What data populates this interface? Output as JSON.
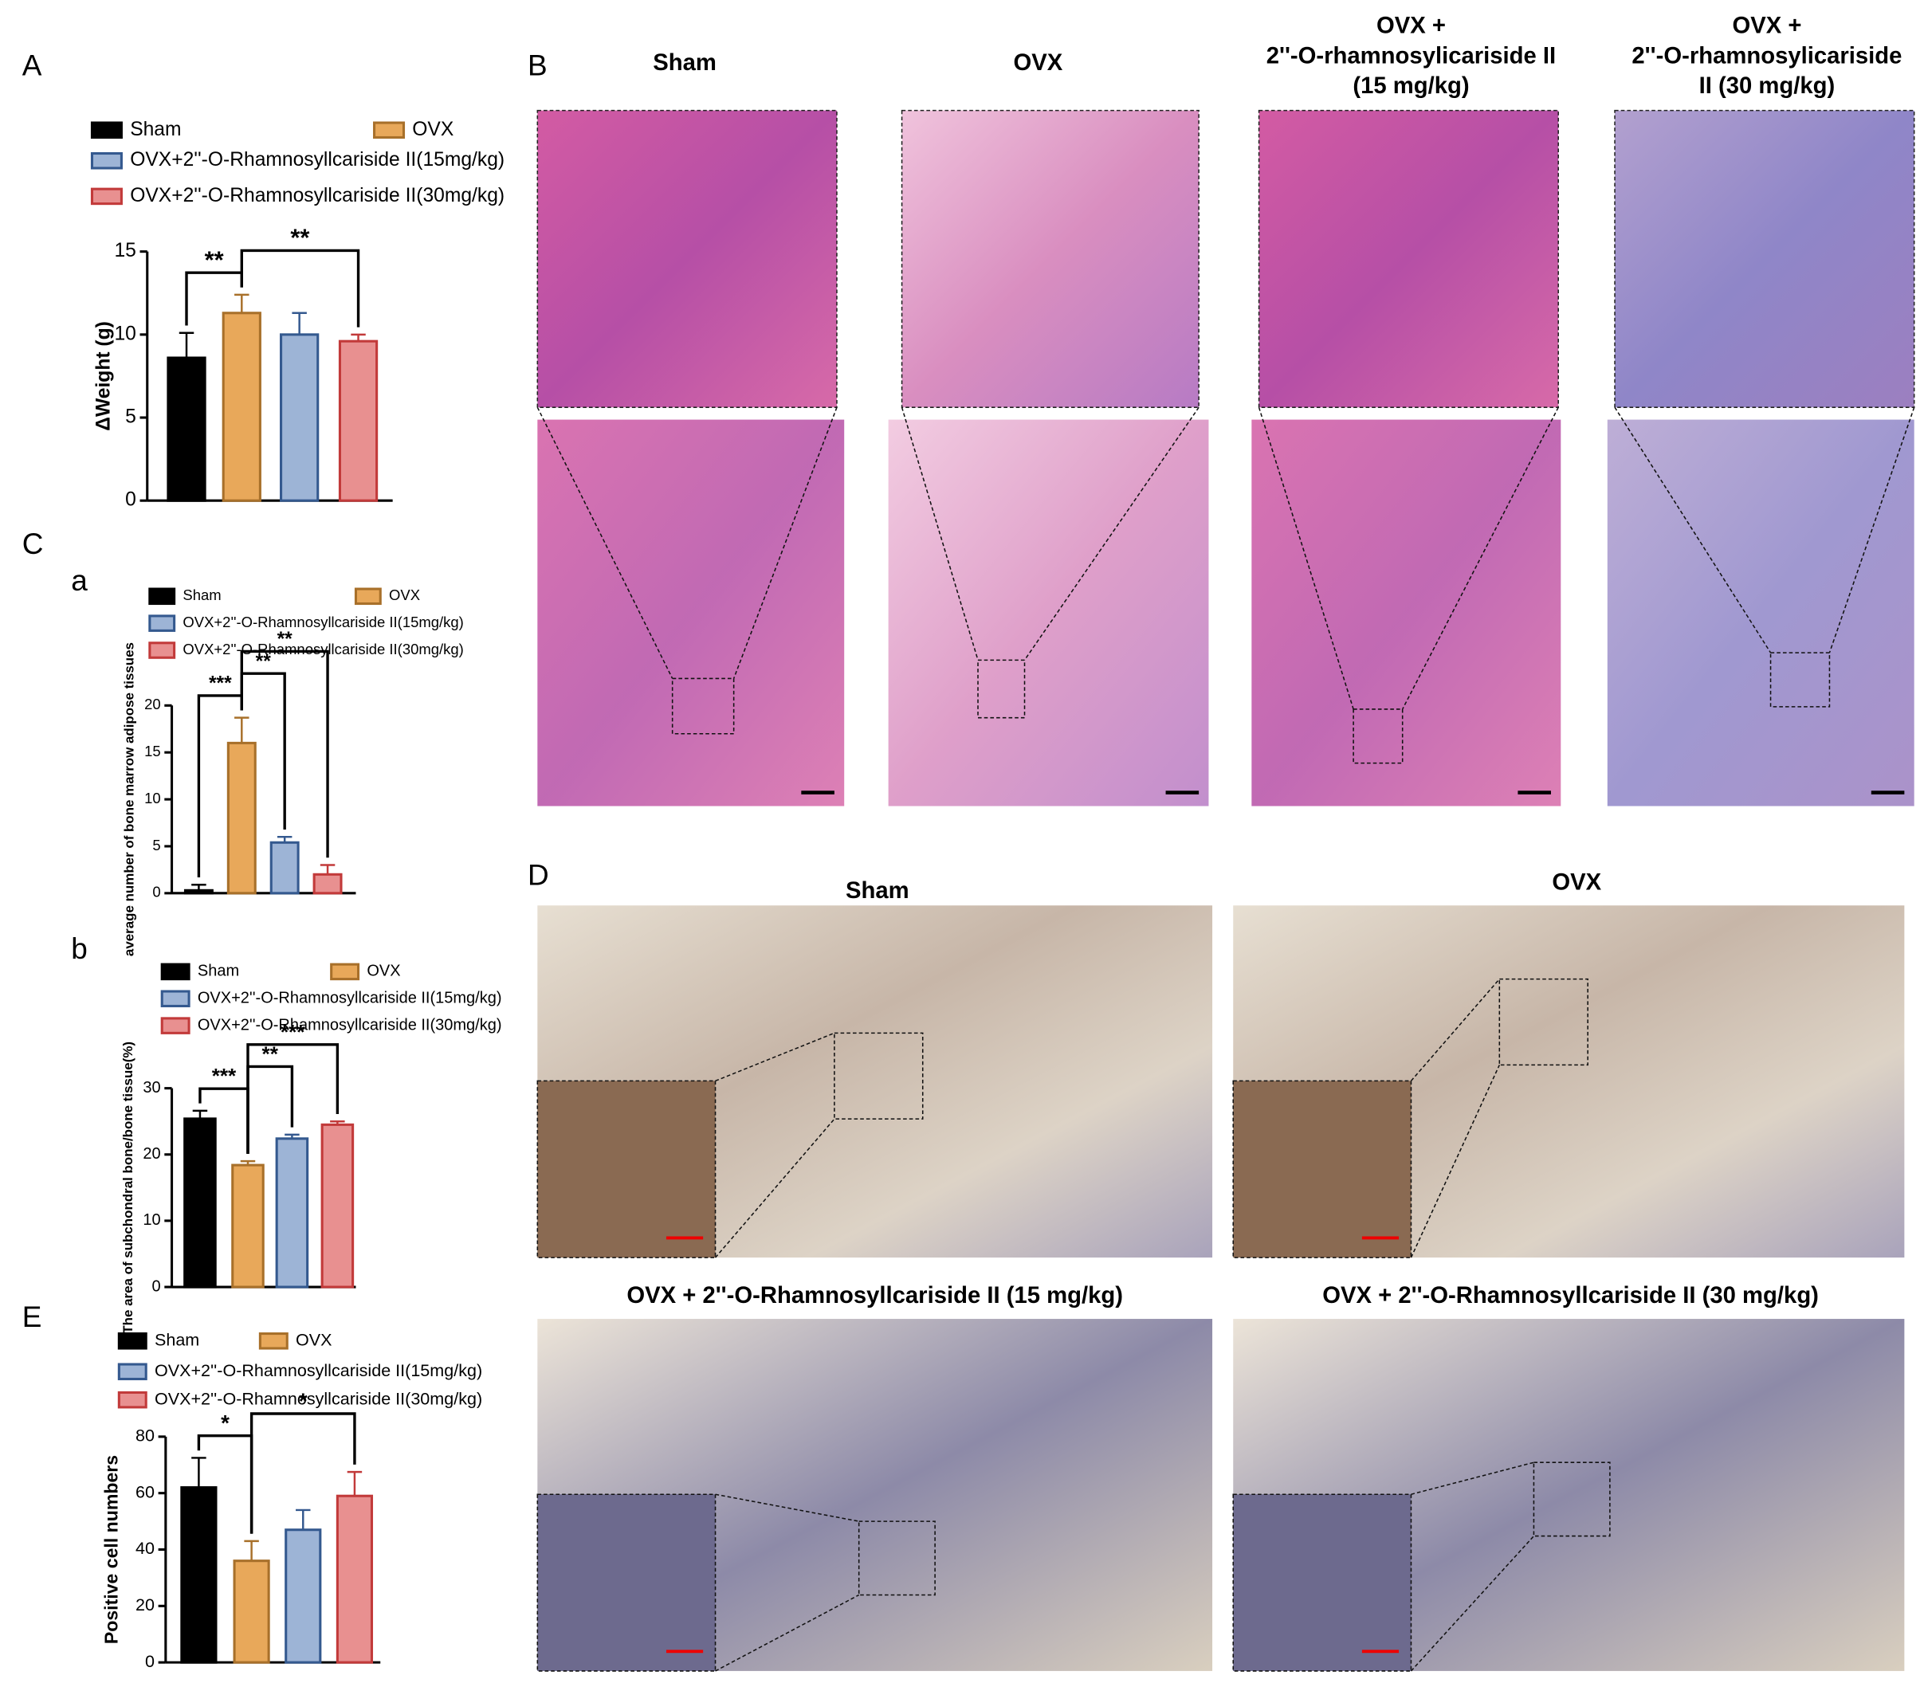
{
  "panel_labels": [
    "A",
    "B",
    "C",
    "a",
    "b",
    "D",
    "E"
  ],
  "chart_data": [
    {
      "type": "bar",
      "ylabel": "ΔWeight (g)",
      "ylim": [
        0,
        15
      ],
      "yticks": [
        0,
        5,
        10,
        15
      ],
      "series": [
        {
          "name": "Sham",
          "color": "#000000",
          "edgecolor": "#000000",
          "values": [
            8.6
          ],
          "errors": [
            1.5
          ]
        },
        {
          "name": "OVX",
          "color": "#e8a85a",
          "edgecolor": "#a8702a",
          "values": [
            11.3
          ],
          "errors": [
            1.1
          ]
        },
        {
          "name": "OVX+2''-O-Rhamnosyllcariside II(15mg/kg)",
          "color": "#9db4d6",
          "edgecolor": "#34598f",
          "values": [
            10.0
          ],
          "errors": [
            1.3
          ]
        },
        {
          "name": "OVX+2''-O-Rhamnosyllcariside II(30mg/kg)",
          "color": "#e89090",
          "edgecolor": "#c23a3a",
          "values": [
            9.6
          ],
          "errors": [
            0.4
          ]
        }
      ],
      "annotations": [
        {
          "label": "**",
          "between": [
            0,
            1
          ]
        },
        {
          "label": "**",
          "between": [
            1,
            3
          ]
        }
      ]
    },
    {
      "type": "bar",
      "ylabel": "average number of bone marrow adipose tissues",
      "ylim": [
        0,
        20
      ],
      "yticks": [
        0,
        5,
        10,
        15,
        20
      ],
      "series": [
        {
          "name": "Sham",
          "color": "#000000",
          "edgecolor": "#000000",
          "values": [
            0.3
          ],
          "errors": [
            0.6
          ]
        },
        {
          "name": "OVX",
          "color": "#e8a85a",
          "edgecolor": "#a8702a",
          "values": [
            16.0
          ],
          "errors": [
            2.7
          ]
        },
        {
          "name": "OVX+2''-O-Rhamnosyllcariside II(15mg/kg)",
          "color": "#9db4d6",
          "edgecolor": "#34598f",
          "values": [
            5.4
          ],
          "errors": [
            0.6
          ]
        },
        {
          "name": "OVX+2''-O-Rhamnosyllcariside II(30mg/kg)",
          "color": "#e89090",
          "edgecolor": "#c23a3a",
          "values": [
            2.0
          ],
          "errors": [
            1.0
          ]
        }
      ],
      "annotations": [
        {
          "label": "***",
          "between": [
            0,
            1
          ]
        },
        {
          "label": "**",
          "between": [
            1,
            2
          ]
        },
        {
          "label": "**",
          "between": [
            1,
            3
          ]
        }
      ]
    },
    {
      "type": "bar",
      "ylabel": "The area of subchondral bone/bone tissue(%)",
      "ylim": [
        0,
        30
      ],
      "yticks": [
        0,
        10,
        20,
        30
      ],
      "series": [
        {
          "name": "Sham",
          "color": "#000000",
          "edgecolor": "#000000",
          "values": [
            25.4
          ],
          "errors": [
            1.2
          ]
        },
        {
          "name": "OVX",
          "color": "#e8a85a",
          "edgecolor": "#a8702a",
          "values": [
            18.4
          ],
          "errors": [
            0.6
          ]
        },
        {
          "name": "OVX+2''-O-Rhamnosyllcariside II(15mg/kg)",
          "color": "#9db4d6",
          "edgecolor": "#34598f",
          "values": [
            22.4
          ],
          "errors": [
            0.6
          ]
        },
        {
          "name": "OVX+2''-O-Rhamnosyllcariside II(30mg/kg)",
          "color": "#e89090",
          "edgecolor": "#c23a3a",
          "values": [
            24.5
          ],
          "errors": [
            0.5
          ]
        }
      ],
      "annotations": [
        {
          "label": "***",
          "between": [
            0,
            1
          ]
        },
        {
          "label": "**",
          "between": [
            1,
            2
          ]
        },
        {
          "label": "***",
          "between": [
            1,
            3
          ]
        }
      ]
    },
    {
      "type": "bar",
      "ylabel": "Positive cell numbers",
      "ylim": [
        0,
        80
      ],
      "yticks": [
        0,
        20,
        40,
        60,
        80
      ],
      "series": [
        {
          "name": "Sham",
          "color": "#000000",
          "edgecolor": "#000000",
          "values": [
            62
          ],
          "errors": [
            10.5
          ]
        },
        {
          "name": "OVX",
          "color": "#e8a85a",
          "edgecolor": "#a8702a",
          "values": [
            36
          ],
          "errors": [
            7
          ]
        },
        {
          "name": "OVX+2''-O-Rhamnosyllcariside II(15mg/kg)",
          "color": "#9db4d6",
          "edgecolor": "#34598f",
          "values": [
            47
          ],
          "errors": [
            7
          ]
        },
        {
          "name": "OVX+2''-O-Rhamnosyllcariside II(30mg/kg)",
          "color": "#e89090",
          "edgecolor": "#c23a3a",
          "values": [
            59
          ],
          "errors": [
            8.5
          ]
        }
      ],
      "annotations": [
        {
          "label": "*",
          "between": [
            0,
            1
          ]
        },
        {
          "label": "*",
          "between": [
            1,
            3
          ]
        }
      ]
    }
  ],
  "histology_B": {
    "titles": [
      [
        "Sham"
      ],
      [
        "OVX"
      ],
      [
        "OVX +",
        "2''-O-rhamnosylicariside II",
        "(15 mg/kg)"
      ],
      [
        "OVX +",
        "2''-O-rhamnosylicariside",
        "II (30 mg/kg)"
      ]
    ]
  },
  "ihc_D": {
    "titles": [
      "Sham",
      "OVX",
      "OVX + 2''-O-Rhamnosyllcariside II (15 mg/kg)",
      "OVX + 2''-O-Rhamnosyllcariside II (30 mg/kg)"
    ]
  }
}
